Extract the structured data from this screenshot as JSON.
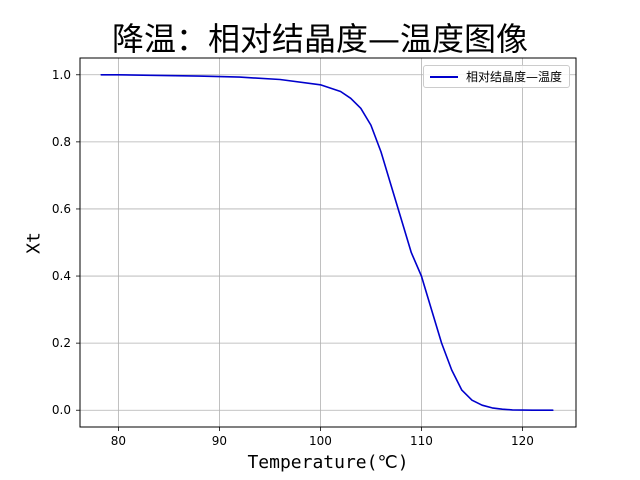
{
  "chart_data": {
    "type": "line",
    "title": "降温：相对结晶度—温度图像",
    "xlabel": "Temperature(℃)",
    "ylabel": "Xt",
    "xlim": [
      76.2,
      125.3
    ],
    "ylim": [
      -0.05,
      1.05
    ],
    "x_ticks": [
      80,
      90,
      100,
      110,
      120
    ],
    "y_ticks": [
      0.0,
      0.2,
      0.4,
      0.6,
      0.8,
      1.0
    ],
    "x_tick_labels": [
      "80",
      "90",
      "100",
      "110",
      "120"
    ],
    "y_tick_labels": [
      "0.0",
      "0.2",
      "0.4",
      "0.6",
      "0.8",
      "1.0"
    ],
    "grid": true,
    "legend_position": "top-right",
    "series": [
      {
        "name": "相对结晶度—温度",
        "color": "#0000cc",
        "x": [
          78.3,
          80,
          84,
          88,
          92,
          96,
          100,
          102,
          103,
          104,
          105,
          106,
          107,
          108,
          109,
          110,
          111,
          112,
          113,
          114,
          115,
          116,
          117,
          118,
          119,
          120,
          121,
          122,
          123
        ],
        "y": [
          1.0,
          1.0,
          0.998,
          0.996,
          0.993,
          0.986,
          0.97,
          0.95,
          0.93,
          0.9,
          0.85,
          0.77,
          0.67,
          0.57,
          0.47,
          0.4,
          0.3,
          0.2,
          0.12,
          0.06,
          0.03,
          0.015,
          0.007,
          0.003,
          0.001,
          0.0005,
          0.0002,
          0.0001,
          0.0
        ]
      }
    ]
  }
}
